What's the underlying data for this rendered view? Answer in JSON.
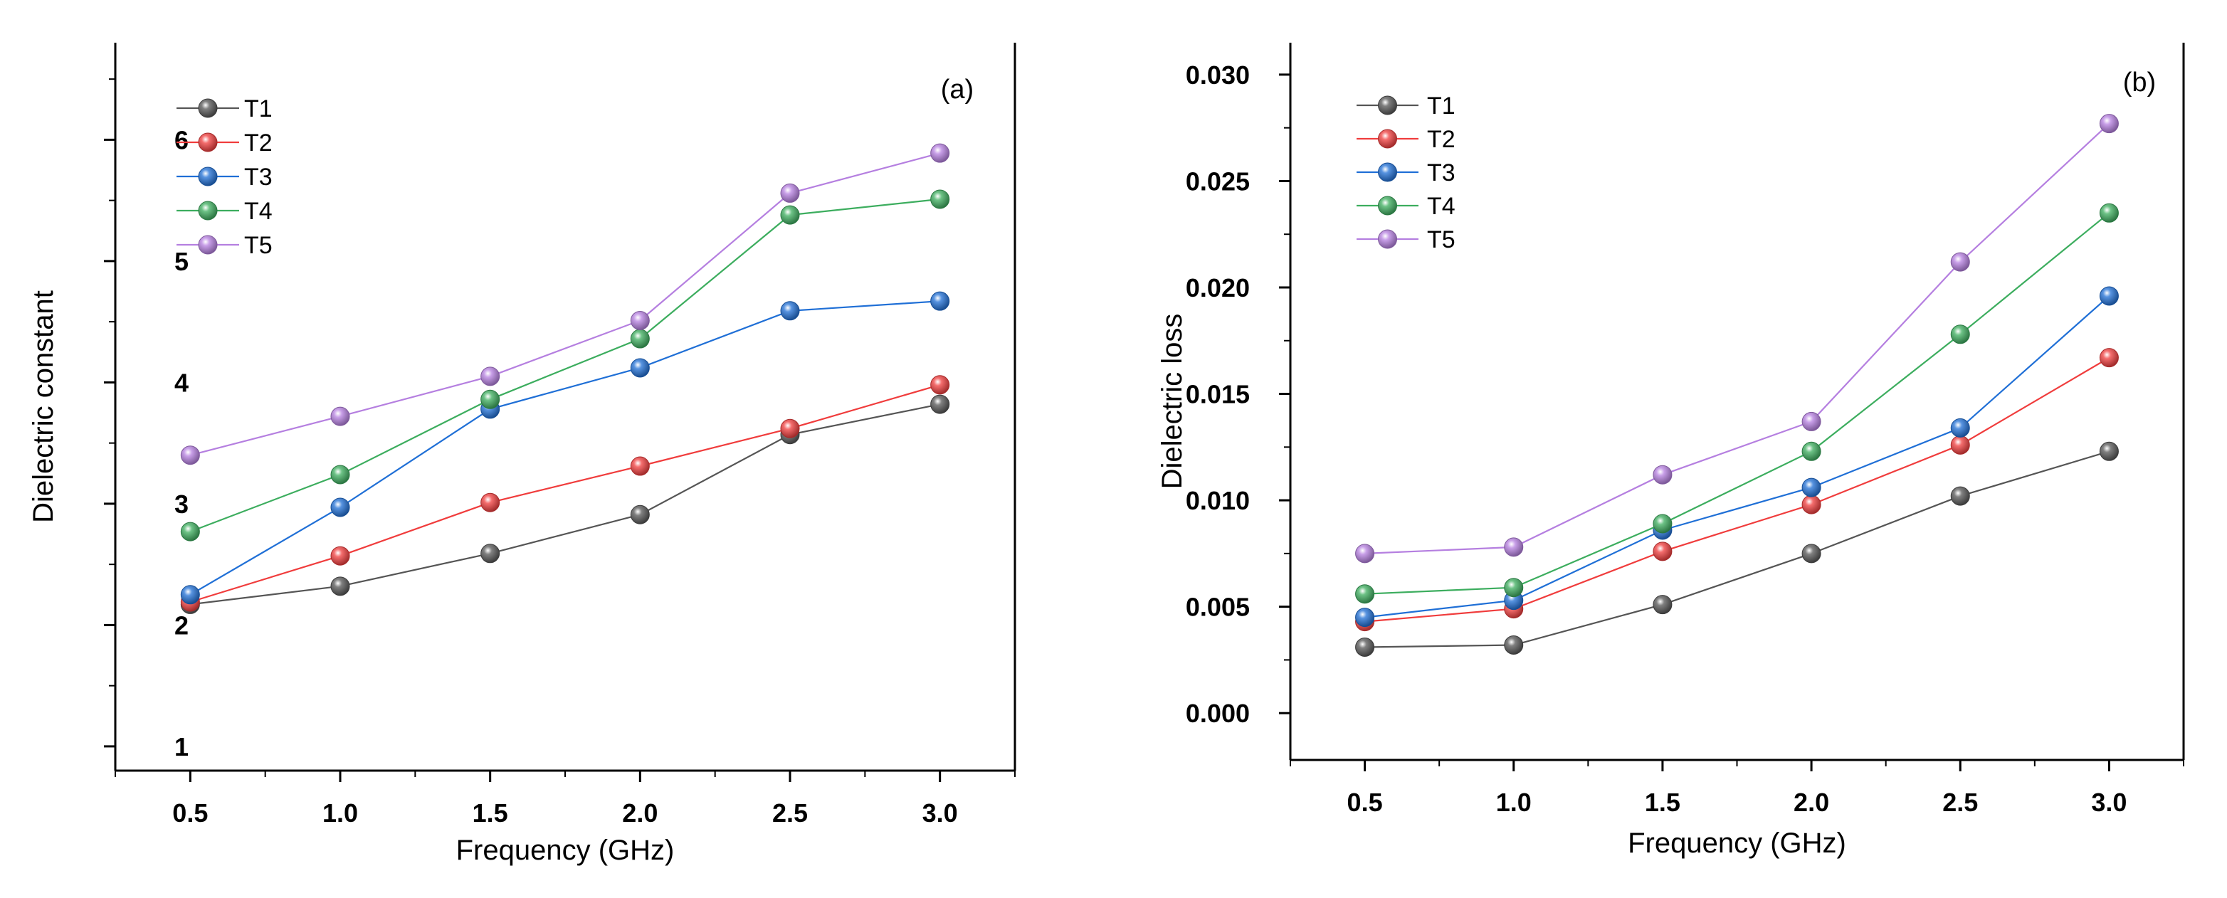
{
  "chart_data": [
    {
      "type": "line",
      "panel_label": "(a)",
      "title": "",
      "xlabel": "Frequency (GHz)",
      "ylabel": "Dielectric constant",
      "xlim": [
        0.25,
        3.25
      ],
      "ylim": [
        0.8,
        6.8
      ],
      "x": [
        0.5,
        1.0,
        1.5,
        2.0,
        2.5,
        3.0
      ],
      "x_ticks": [
        0.5,
        1.0,
        1.5,
        2.0,
        2.5,
        3.0
      ],
      "x_tick_labels": [
        "0.5",
        "1.0",
        "1.5",
        "2.0",
        "2.5",
        "3.0"
      ],
      "y_ticks": [
        1,
        2,
        3,
        4,
        5,
        6
      ],
      "y_tick_labels": [
        "1",
        "2",
        "3",
        "4",
        "5",
        "6"
      ],
      "legend_position": "top-left",
      "series": [
        {
          "name": "T1",
          "color": "#555555",
          "values": [
            2.17,
            2.32,
            2.59,
            2.91,
            3.57,
            3.82
          ]
        },
        {
          "name": "T2",
          "color": "#f03c3c",
          "values": [
            2.19,
            2.57,
            3.01,
            3.31,
            3.62,
            3.98
          ]
        },
        {
          "name": "T3",
          "color": "#1f6fd6",
          "values": [
            2.25,
            2.97,
            3.78,
            4.12,
            4.59,
            4.67
          ]
        },
        {
          "name": "T4",
          "color": "#3cad5e",
          "values": [
            2.77,
            3.24,
            3.86,
            4.36,
            5.38,
            5.51
          ]
        },
        {
          "name": "T5",
          "color": "#b57fe0",
          "values": [
            3.4,
            3.72,
            4.05,
            4.51,
            5.56,
            5.89
          ]
        }
      ]
    },
    {
      "type": "line",
      "panel_label": "(b)",
      "title": "",
      "xlabel": "Frequency (GHz)",
      "ylabel": "Dielectric loss",
      "xlim": [
        0.25,
        3.25
      ],
      "ylim": [
        -0.0022,
        0.0315
      ],
      "x": [
        0.5,
        1.0,
        1.5,
        2.0,
        2.5,
        3.0
      ],
      "x_ticks": [
        0.5,
        1.0,
        1.5,
        2.0,
        2.5,
        3.0
      ],
      "x_tick_labels": [
        "0.5",
        "1.0",
        "1.5",
        "2.0",
        "2.5",
        "3.0"
      ],
      "y_ticks": [
        0.0,
        0.005,
        0.01,
        0.015,
        0.02,
        0.025,
        0.03
      ],
      "y_tick_labels": [
        "0.000",
        "0.005",
        "0.010",
        "0.015",
        "0.020",
        "0.025",
        "0.030"
      ],
      "legend_position": "top-left",
      "series": [
        {
          "name": "T1",
          "color": "#555555",
          "values": [
            0.0031,
            0.0032,
            0.0051,
            0.0075,
            0.0102,
            0.0123
          ]
        },
        {
          "name": "T2",
          "color": "#f03c3c",
          "values": [
            0.0043,
            0.0049,
            0.0076,
            0.0098,
            0.0126,
            0.0167
          ]
        },
        {
          "name": "T3",
          "color": "#1f6fd6",
          "values": [
            0.0045,
            0.0053,
            0.0086,
            0.0106,
            0.0134,
            0.0196
          ]
        },
        {
          "name": "T4",
          "color": "#3cad5e",
          "values": [
            0.0056,
            0.0059,
            0.0089,
            0.0123,
            0.0178,
            0.0235
          ]
        },
        {
          "name": "T5",
          "color": "#b57fe0",
          "values": [
            0.0075,
            0.0078,
            0.0112,
            0.0137,
            0.0212,
            0.0277
          ]
        }
      ]
    }
  ]
}
